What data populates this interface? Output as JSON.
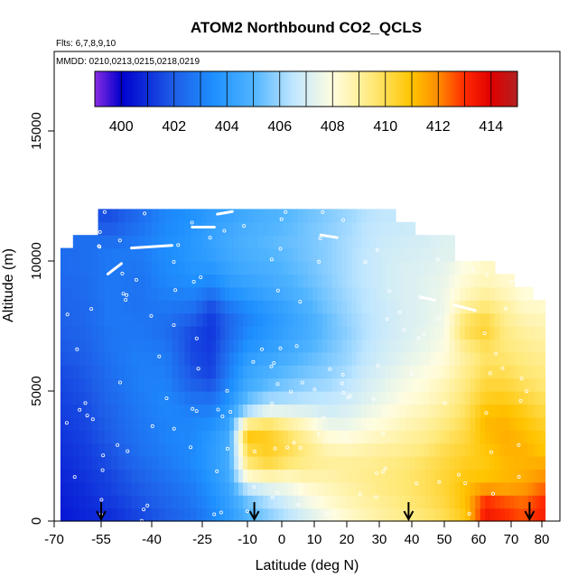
{
  "chart_data": {
    "type": "heatmap",
    "title": "ATOM2 Northbound CO2_QCLS",
    "notes": {
      "flights": "Flts: 6,7,8,9,10",
      "dates": "MMDD: 0210,0213,0215,0218,0219"
    },
    "xlabel": "Latitude (deg N)",
    "ylabel": "Altitude (m)",
    "xlim": [
      -70,
      82
    ],
    "ylim": [
      0,
      17500
    ],
    "x_ticks": [
      -70,
      -55,
      -40,
      -25,
      -10,
      0,
      10,
      20,
      30,
      40,
      50,
      60,
      70,
      80
    ],
    "y_ticks": [
      0,
      5000,
      10000,
      15000
    ],
    "colorbar": {
      "range": [
        399,
        415
      ],
      "ticks": [
        400,
        402,
        404,
        406,
        408,
        410,
        412,
        414
      ],
      "colors": [
        {
          "v": 399,
          "c": "#8a2be2"
        },
        {
          "v": 400,
          "c": "#0000cd"
        },
        {
          "v": 402,
          "c": "#1e5ee8"
        },
        {
          "v": 403.5,
          "c": "#1e90ff"
        },
        {
          "v": 405,
          "c": "#4fb4ff"
        },
        {
          "v": 406.5,
          "c": "#bfe6ff"
        },
        {
          "v": 408,
          "c": "#fffde0"
        },
        {
          "v": 409.5,
          "c": "#ffe97a"
        },
        {
          "v": 411,
          "c": "#ffc400"
        },
        {
          "v": 412,
          "c": "#ff8c00"
        },
        {
          "v": 413,
          "c": "#ff2a00"
        },
        {
          "v": 414,
          "c": "#e00000"
        },
        {
          "v": 415,
          "c": "#b22222"
        }
      ]
    },
    "grid": false,
    "profile_markers_lat": [
      -55,
      -8,
      39,
      76
    ],
    "altitude_bins_m": [
      0,
      500,
      1000,
      1500,
      2000,
      2500,
      3000,
      3500,
      4000,
      4500,
      5000,
      5500,
      6000,
      6500,
      7000,
      7500,
      8000,
      8500,
      9000,
      9500,
      10000,
      10500,
      11000,
      11500,
      12000
    ],
    "latitude_columns": [
      {
        "lat": -68,
        "top": 10500,
        "values": [
          400.5,
          400.6,
          400.7,
          400.8,
          400.9,
          401.0,
          401.1,
          401.2,
          401.3,
          401.4,
          401.5,
          401.6,
          401.8,
          401.9,
          402.0,
          402.1,
          402.2,
          402.2,
          402.3,
          402.4,
          402.4,
          null,
          null,
          null
        ]
      },
      {
        "lat": -60,
        "top": 11000,
        "values": [
          400.8,
          400.9,
          401.0,
          401.1,
          401.2,
          401.3,
          401.4,
          401.5,
          401.6,
          401.7,
          401.8,
          401.9,
          402.0,
          402.1,
          402.2,
          402.3,
          402.3,
          402.4,
          402.4,
          402.5,
          402.5,
          402.5,
          null,
          null
        ]
      },
      {
        "lat": -52,
        "top": 12000,
        "values": [
          401.0,
          401.2,
          401.4,
          401.5,
          401.7,
          401.8,
          402.0,
          402.1,
          402.2,
          402.3,
          402.4,
          402.5,
          402.6,
          402.7,
          402.7,
          402.8,
          402.8,
          402.8,
          402.8,
          402.8,
          402.8,
          402.5,
          402.0,
          401.7
        ]
      },
      {
        "lat": -44,
        "top": 12000,
        "values": [
          401.5,
          401.7,
          401.9,
          402.1,
          402.3,
          402.5,
          402.6,
          402.7,
          402.8,
          402.9,
          403.0,
          403.0,
          403.0,
          402.9,
          402.8,
          402.7,
          402.6,
          402.6,
          402.6,
          402.7,
          402.8,
          402.8,
          402.6,
          402.4
        ]
      },
      {
        "lat": -36,
        "top": 12000,
        "values": [
          402.0,
          402.2,
          402.4,
          402.6,
          402.8,
          403.0,
          403.1,
          403.1,
          403.2,
          403.2,
          403.1,
          403.0,
          402.9,
          402.7,
          402.5,
          402.6,
          402.8,
          403.0,
          403.2,
          403.3,
          403.4,
          403.4,
          403.3,
          403.2
        ]
      },
      {
        "lat": -28,
        "top": 12000,
        "values": [
          402.5,
          402.7,
          402.9,
          403.1,
          403.3,
          403.3,
          403.3,
          403.2,
          403.0,
          402.6,
          402.1,
          401.8,
          401.6,
          401.5,
          401.6,
          402.0,
          402.6,
          403.1,
          403.5,
          403.7,
          403.8,
          403.8,
          403.7,
          403.6
        ]
      },
      {
        "lat": -22,
        "top": 12000,
        "values": [
          403.2,
          403.4,
          403.6,
          403.8,
          403.9,
          403.9,
          403.8,
          403.5,
          403.0,
          402.5,
          401.8,
          401.4,
          401.3,
          401.2,
          401.1,
          401.2,
          401.6,
          402.5,
          403.3,
          403.8,
          404.1,
          404.2,
          404.2,
          404.0
        ]
      },
      {
        "lat": -16,
        "top": 12000,
        "values": [
          404.0,
          404.2,
          404.4,
          404.6,
          404.7,
          404.7,
          404.6,
          404.3,
          404.0,
          403.6,
          403.3,
          403.0,
          402.8,
          402.5,
          402.3,
          402.3,
          402.8,
          403.5,
          404.0,
          404.3,
          404.5,
          404.6,
          404.5,
          404.3
        ]
      },
      {
        "lat": -10,
        "top": 12000,
        "values": [
          405.0,
          405.4,
          406.5,
          408.3,
          409.5,
          410.2,
          410.8,
          409.2,
          406.2,
          405.2,
          404.6,
          404.3,
          404.0,
          403.6,
          403.3,
          403.1,
          403.4,
          403.9,
          404.3,
          404.6,
          404.8,
          404.9,
          404.8,
          404.6
        ]
      },
      {
        "lat": -4,
        "top": 12000,
        "values": [
          405.8,
          406.3,
          407.2,
          408.8,
          410.2,
          410.6,
          410.6,
          409.7,
          407.4,
          406.0,
          405.2,
          404.8,
          404.4,
          404.0,
          403.8,
          403.7,
          403.9,
          404.3,
          404.6,
          404.8,
          405.0,
          405.1,
          405.0,
          404.9
        ]
      },
      {
        "lat": 2,
        "top": 12000,
        "values": [
          406.5,
          407.0,
          407.6,
          408.6,
          409.6,
          410.0,
          409.8,
          409.0,
          407.3,
          406.2,
          405.6,
          405.2,
          404.8,
          404.5,
          404.3,
          404.2,
          404.4,
          404.7,
          404.9,
          405.1,
          405.2,
          405.3,
          405.2,
          405.1
        ]
      },
      {
        "lat": 8,
        "top": 12000,
        "values": [
          407.2,
          407.7,
          408.2,
          408.8,
          409.2,
          409.3,
          409.0,
          408.3,
          407.2,
          406.4,
          405.9,
          405.5,
          405.2,
          404.9,
          404.7,
          404.7,
          404.9,
          405.1,
          405.3,
          405.4,
          405.5,
          405.5,
          405.5,
          405.4
        ]
      },
      {
        "lat": 14,
        "top": 12000,
        "values": [
          407.8,
          408.2,
          408.5,
          408.8,
          409.0,
          408.7,
          408.1,
          407.5,
          406.9,
          406.5,
          406.1,
          405.8,
          405.6,
          405.4,
          405.3,
          405.3,
          405.5,
          405.6,
          405.7,
          405.8,
          405.8,
          405.8,
          405.8,
          405.7
        ]
      },
      {
        "lat": 20,
        "top": 12000,
        "values": [
          408.3,
          408.6,
          408.8,
          409.0,
          409.0,
          408.6,
          408.0,
          407.5,
          407.1,
          406.8,
          406.5,
          406.2,
          406.0,
          405.9,
          405.8,
          405.9,
          406.0,
          406.1,
          406.2,
          406.2,
          406.2,
          406.2,
          406.1,
          406.0
        ]
      },
      {
        "lat": 26,
        "top": 12000,
        "values": [
          408.7,
          408.9,
          409.1,
          409.2,
          409.1,
          408.8,
          408.3,
          407.9,
          407.5,
          407.2,
          407.0,
          406.8,
          406.6,
          406.5,
          406.4,
          406.4,
          406.5,
          406.5,
          406.6,
          406.6,
          406.6,
          406.5,
          406.5,
          406.4
        ]
      },
      {
        "lat": 32,
        "top": 12000,
        "values": [
          409.0,
          409.2,
          409.4,
          409.4,
          409.3,
          409.0,
          408.6,
          408.2,
          407.9,
          407.6,
          407.4,
          407.2,
          407.0,
          406.9,
          406.8,
          406.8,
          406.8,
          406.9,
          406.9,
          406.9,
          406.9,
          406.8,
          406.7,
          406.6
        ]
      },
      {
        "lat": 38,
        "top": 11500,
        "values": [
          409.3,
          409.5,
          409.6,
          409.6,
          409.5,
          409.2,
          408.9,
          408.6,
          408.3,
          408.0,
          407.8,
          407.6,
          407.4,
          407.2,
          407.1,
          407.1,
          407.1,
          407.1,
          407.1,
          407.1,
          407.0,
          406.9,
          406.8,
          null
        ]
      },
      {
        "lat": 44,
        "top": 11000,
        "values": [
          409.6,
          409.8,
          409.9,
          409.9,
          409.8,
          409.5,
          409.2,
          408.9,
          408.6,
          408.3,
          408.1,
          407.9,
          407.7,
          407.5,
          407.4,
          407.3,
          407.3,
          407.3,
          407.3,
          407.2,
          407.1,
          407.0,
          null,
          null
        ]
      },
      {
        "lat": 50,
        "top": 11000,
        "values": [
          410.0,
          410.2,
          410.3,
          410.3,
          410.2,
          410.0,
          409.7,
          409.4,
          409.1,
          408.8,
          408.6,
          408.3,
          408.1,
          407.9,
          407.8,
          407.7,
          407.6,
          407.6,
          407.5,
          407.4,
          407.3,
          407.2,
          null,
          null
        ]
      },
      {
        "lat": 56,
        "top": 10000,
        "values": [
          410.8,
          411.0,
          411.0,
          410.8,
          410.6,
          410.4,
          410.2,
          410.0,
          409.8,
          409.6,
          409.4,
          409.2,
          409.0,
          409.3,
          409.8,
          409.6,
          409.0,
          408.5,
          408.2,
          408.0,
          null,
          null,
          null,
          null
        ]
      },
      {
        "lat": 62,
        "top": 10000,
        "values": [
          413.4,
          413.0,
          411.8,
          411.0,
          410.8,
          410.9,
          411.1,
          411.2,
          411.0,
          410.6,
          410.3,
          410.0,
          409.8,
          410.0,
          410.4,
          410.2,
          409.6,
          409.0,
          408.6,
          408.4,
          null,
          null,
          null,
          null
        ]
      },
      {
        "lat": 68,
        "top": 9500,
        "values": [
          413.0,
          412.6,
          411.6,
          411.2,
          411.2,
          411.3,
          411.4,
          411.3,
          411.1,
          410.7,
          410.3,
          410.0,
          409.7,
          409.5,
          409.4,
          409.2,
          409.0,
          408.6,
          408.3,
          null,
          null,
          null,
          null,
          null
        ]
      },
      {
        "lat": 74,
        "top": 9000,
        "values": [
          412.6,
          412.3,
          411.8,
          411.4,
          411.3,
          411.3,
          411.2,
          411.0,
          410.7,
          410.3,
          409.9,
          409.6,
          409.4,
          409.2,
          409.0,
          408.7,
          408.4,
          408.1,
          null,
          null,
          null,
          null,
          null,
          null
        ]
      },
      {
        "lat": 80,
        "top": 8500,
        "values": [
          413.2,
          413.0,
          412.4,
          411.8,
          411.4,
          411.0,
          410.8,
          410.5,
          410.2,
          409.9,
          409.6,
          409.4,
          409.2,
          409.0,
          408.8,
          408.6,
          408.3,
          null,
          null,
          null,
          null,
          null,
          null,
          null
        ]
      }
    ]
  }
}
